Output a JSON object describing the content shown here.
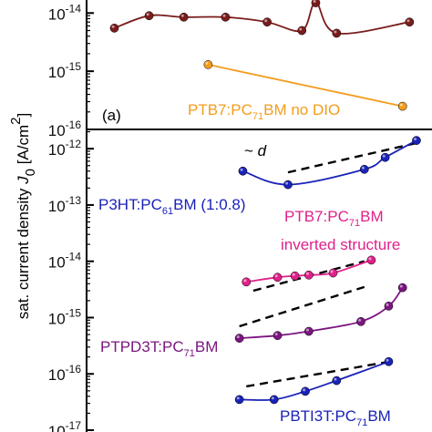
{
  "chart_data": [
    {
      "type": "scatter",
      "panel_label": "(a)",
      "ylabel": "sat. current density J0 [A/cm²]",
      "ylabel_parts": {
        "main": "sat. current density ",
        "sym": "J",
        "sub": "0",
        "unit": " [A/cm",
        "sup": "2",
        "close": "]"
      },
      "yscale": "log",
      "ylim": [
        1e-16,
        1.8e-14
      ],
      "yticks": [
        {
          "value": 1e-16,
          "base": "10",
          "exp": "-16"
        },
        {
          "value": 1e-15,
          "base": "10",
          "exp": "-15"
        },
        {
          "value": 1e-14,
          "base": "10",
          "exp": "-14"
        }
      ],
      "x_range": [
        0,
        1
      ],
      "series": [
        {
          "color": "#7a1c1c",
          "points": [
            [
              0.08,
              5.5e-15
            ],
            [
              0.18,
              9e-15
            ],
            [
              0.28,
              8.5e-15
            ],
            [
              0.4,
              8.5e-15
            ],
            [
              0.52,
              7e-15
            ],
            [
              0.62,
              5e-15
            ],
            [
              0.66,
              1.5e-14
            ],
            [
              0.72,
              4.5e-15
            ],
            [
              0.93,
              7e-15
            ]
          ]
        },
        {
          "name": "PTB7:PC71BM no DIO",
          "label_parts": {
            "a": "PTB7:PC",
            "sub": "71",
            "b": "BM no DIO"
          },
          "color": "#f39c1b",
          "points": [
            [
              0.35,
              1.3e-15
            ],
            [
              0.91,
              2.5e-16
            ]
          ]
        }
      ]
    },
    {
      "type": "scatter",
      "yscale": "log",
      "ylim": [
        8e-18,
        2.2e-12
      ],
      "yticks": [
        {
          "value": 1e-17,
          "base": "10",
          "exp": "-17"
        },
        {
          "value": 1e-16,
          "base": "10",
          "exp": "-16"
        },
        {
          "value": 1e-15,
          "base": "10",
          "exp": "-15"
        },
        {
          "value": 1e-14,
          "base": "10",
          "exp": "-14"
        },
        {
          "value": 1e-13,
          "base": "10",
          "exp": "-13"
        },
        {
          "value": 1e-12,
          "base": "10",
          "exp": "-12"
        }
      ],
      "x_range": [
        0,
        1
      ],
      "guide_label": {
        "prefix": "~ ",
        "var": "d"
      },
      "series": [
        {
          "name": "P3HT:PC61BM (1:0.8)",
          "label_parts": {
            "a": "P3HT:PC",
            "sub": "61",
            "b": "BM (1:0.8)"
          },
          "color": "#1a23b8",
          "points": [
            [
              0.45,
              4e-13
            ],
            [
              0.58,
              2.3e-13
            ],
            [
              0.8,
              4.3e-13
            ],
            [
              0.86,
              7e-13
            ],
            [
              0.95,
              1.4e-12
            ]
          ],
          "guide": [
            [
              0.58,
              3.8e-13
            ],
            [
              0.96,
              1.3e-12
            ]
          ]
        },
        {
          "name": "PTB7:PC71BM inverted structure",
          "label_parts": {
            "a": "PTB7:PC",
            "sub": "71",
            "b": "BM",
            "line2": "inverted structure"
          },
          "color": "#e0218a",
          "points": [
            [
              0.46,
              4.3e-15
            ],
            [
              0.55,
              5.2e-15
            ],
            [
              0.6,
              5.5e-15
            ],
            [
              0.64,
              5.7e-15
            ],
            [
              0.71,
              6.2e-15
            ],
            [
              0.82,
              1.05e-14
            ]
          ],
          "guide": [
            [
              0.48,
              3e-15
            ],
            [
              0.8,
              1e-14
            ]
          ]
        },
        {
          "name": "PTPD3T:PC71BM",
          "label_parts": {
            "a": "PTPD3T:PC",
            "sub": "71",
            "b": "BM"
          },
          "color": "#7b1680",
          "points": [
            [
              0.44,
              4.3e-16
            ],
            [
              0.55,
              4.8e-16
            ],
            [
              0.64,
              5.7e-16
            ],
            [
              0.79,
              8.5e-16
            ],
            [
              0.87,
              1.6e-15
            ],
            [
              0.91,
              3.4e-15
            ]
          ],
          "guide": [
            [
              0.44,
              7e-16
            ],
            [
              0.8,
              3.5e-15
            ]
          ]
        },
        {
          "name": "PBTI3T:PC71BM",
          "label_parts": {
            "a": "PBTI3T:PC",
            "sub": "71",
            "b": "BM"
          },
          "color": "#1a23b8",
          "points": [
            [
              0.44,
              3.5e-17
            ],
            [
              0.54,
              3.5e-17
            ],
            [
              0.63,
              4.9e-17
            ],
            [
              0.72,
              7.6e-17
            ],
            [
              0.87,
              1.65e-16
            ]
          ],
          "guide": [
            [
              0.46,
              6e-17
            ],
            [
              0.86,
              1.6e-16
            ]
          ]
        }
      ]
    }
  ]
}
